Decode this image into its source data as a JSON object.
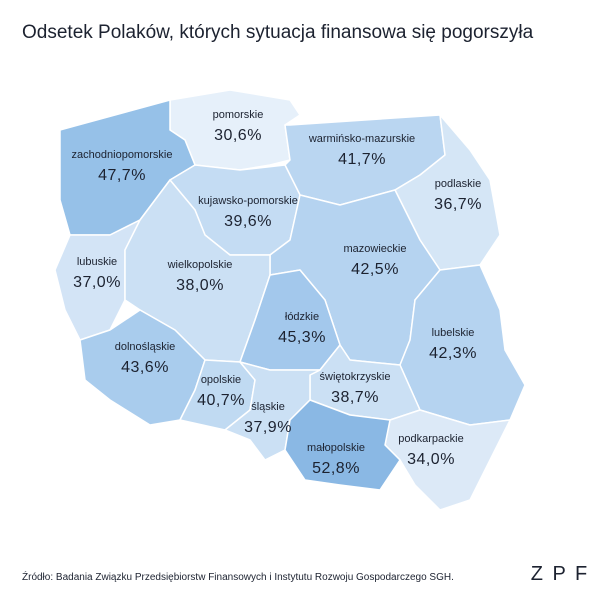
{
  "chart_data": {
    "type": "choropleth",
    "title": "Odsetek Polaków, których sytuacja finansowa się pogorszyła",
    "regions": [
      "pomorskie",
      "warmińsko-mazurskie",
      "zachodniopomorskie",
      "podlaskie",
      "kujawsko-pomorskie",
      "mazowieckie",
      "lubuskie",
      "wielkopolskie",
      "łódzkie",
      "dolnośląskie",
      "lubelskie",
      "opolskie",
      "świętokrzyskie",
      "śląskie",
      "podkarpackie",
      "małopolskie"
    ],
    "values": [
      30.6,
      41.7,
      47.7,
      36.7,
      39.6,
      42.5,
      37.0,
      38.0,
      45.3,
      43.6,
      42.3,
      40.7,
      38.7,
      37.9,
      34.0,
      52.8
    ],
    "value_labels": [
      "30,6%",
      "41,7%",
      "47,7%",
      "36,7%",
      "39,6%",
      "42,5%",
      "37,0%",
      "38,0%",
      "45,3%",
      "43,6%",
      "42,3%",
      "40,7%",
      "38,7%",
      "37,9%",
      "34,0%",
      "52,8%"
    ],
    "colors": [
      "#e6f0fa",
      "#bad6f1",
      "#96c1e8",
      "#d5e6f6",
      "#c4dcf3",
      "#b5d3f0",
      "#d3e4f6",
      "#cbe0f4",
      "#a3c8ec",
      "#a9cced",
      "#b5d3f0",
      "#c0daf2",
      "#cbe0f4",
      "#cbe0f4",
      "#dce9f7",
      "#8ab8e4"
    ],
    "source": "Źródło: Badania Związku Przedsiębiorstw Finansowych i Instytutu Rozwoju Gospodarczego SGH.",
    "logo": "Z P F"
  }
}
